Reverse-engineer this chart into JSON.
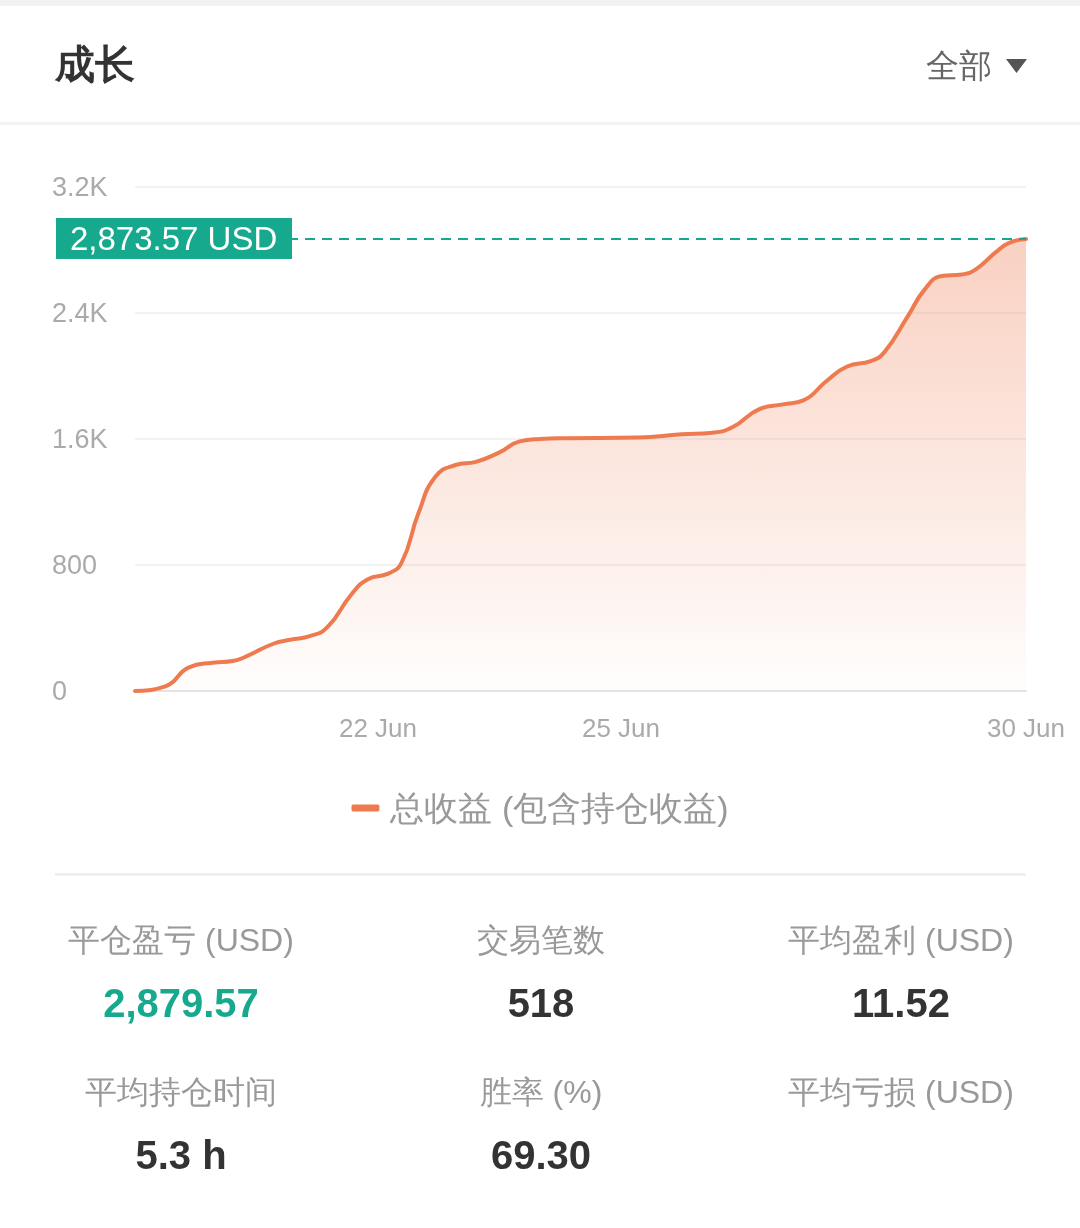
{
  "chart_data": [
    {
      "type": "area",
      "title": "成长",
      "annotations": [
        "全部"
      ],
      "x": [
        "--06-19",
        "--06-19T09:00",
        "--06-19T16:00",
        "--06-19T23:00",
        "--06-20T05:00",
        "--06-20T09:00",
        "--06-20T17:00",
        "--06-20T22:00",
        "--06-21T04:00",
        "--06-21T09:00",
        "--06-21T16:00",
        "--06-21T21:00",
        "--06-22T03:00",
        "--06-22T07:00",
        "--06-22T12:00",
        "--06-22T17:00",
        "--06-22T23:00",
        "--06-23T05:00",
        "--06-23T12:00",
        "--06-23T18:00",
        "--06-24",
        "--06-24T08:00",
        "--06-25T05:00",
        "--06-25T18:00",
        "--06-26T03:00",
        "--06-26T09:00",
        "--06-26T17:00",
        "--06-27",
        "--06-27T06:00",
        "--06-27T13:00",
        "--06-27T19:00",
        "--06-28T02:00",
        "--06-28T06:00",
        "--06-28T13:00",
        "--06-28T18:00",
        "--06-28T23:00",
        "--06-29T05:00",
        "--06-29T09:00",
        "--06-29T15:00",
        "--06-29T19:00",
        "--06-30"
      ],
      "series": [
        {
          "name": "总收益 (包含持仓收益)",
          "color": "#ee7b50",
          "values": [
            0,
            30,
            150,
            180,
            190,
            220,
            300,
            325,
            350,
            405,
            610,
            710,
            745,
            815,
            1130,
            1360,
            1435,
            1455,
            1515,
            1585,
            1600,
            1605,
            1610,
            1630,
            1640,
            1675,
            1790,
            1820,
            1845,
            1970,
            2060,
            2095,
            2150,
            2380,
            2550,
            2635,
            2645,
            2675,
            2785,
            2845,
            2870
          ]
        }
      ],
      "xlim": [
        "--06-19",
        "--06-30"
      ],
      "xticks": [
        {
          "value": "--06-22",
          "label": "22 Jun"
        },
        {
          "value": "--06-25",
          "label": "25 Jun"
        },
        {
          "value": "--06-30",
          "label": "30 Jun"
        }
      ],
      "ylim": [
        0,
        3200
      ],
      "yticks": [
        0,
        800,
        {
          "value": 1600,
          "label": "1.6K"
        },
        {
          "value": 2400,
          "label": "2.4K"
        },
        {
          "value": 3200,
          "label": "3.2K"
        }
      ],
      "grid": "y",
      "legend": "bottom",
      "marker": "none",
      "ref_lines": [
        {
          "axis": "y",
          "value": 2873.57,
          "label": "2,873.57 USD",
          "color": "#17a98d",
          "line_style": "dashed"
        }
      ]
    },
    {
      "type": "other",
      "categories": [
        "平仓盈亏 (USD)",
        "交易笔数",
        "平均盈利 (USD)",
        "平均持仓时间",
        "胜率 (%)",
        "平均亏损 (USD)"
      ],
      "value_labels": [
        "2,879.57",
        "518",
        "11.52",
        "5.3 h",
        "69.30",
        null
      ],
      "colors": [
        "#17a98d",
        "#333333",
        "#333333",
        "#333333",
        "#333333"
      ]
    }
  ]
}
